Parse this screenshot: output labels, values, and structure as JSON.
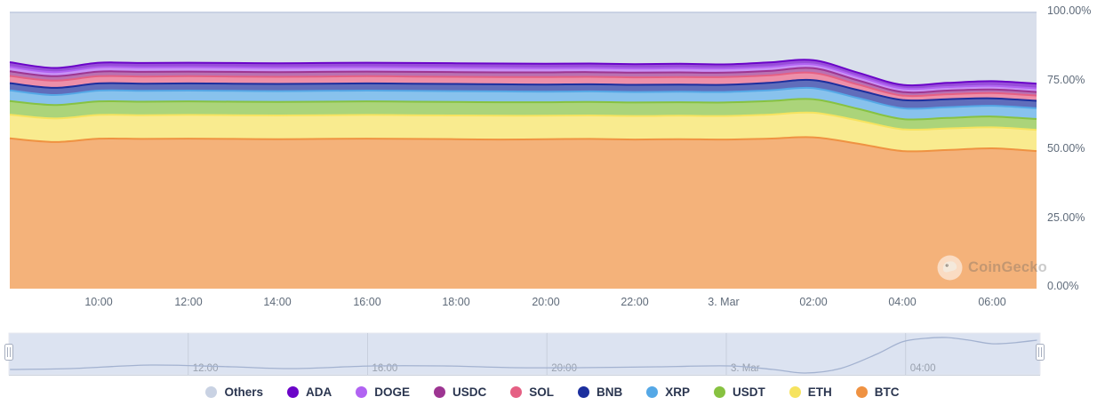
{
  "watermark": {
    "text": "CoinGecko"
  },
  "y_axis": {
    "labels": [
      "100.00%",
      "75.00%",
      "50.00%",
      "25.00%",
      "0.00%"
    ]
  },
  "x_axis": {
    "ticks": [
      {
        "label": "10:00",
        "hour": 2
      },
      {
        "label": "12:00",
        "hour": 4
      },
      {
        "label": "14:00",
        "hour": 6
      },
      {
        "label": "16:00",
        "hour": 8
      },
      {
        "label": "18:00",
        "hour": 10
      },
      {
        "label": "20:00",
        "hour": 12
      },
      {
        "label": "22:00",
        "hour": 14
      },
      {
        "label": "3. Mar",
        "hour": 16
      },
      {
        "label": "02:00",
        "hour": 18
      },
      {
        "label": "04:00",
        "hour": 20
      },
      {
        "label": "06:00",
        "hour": 22
      }
    ]
  },
  "navigator": {
    "ticks": [
      {
        "label": "12:00",
        "hour": 4
      },
      {
        "label": "16:00",
        "hour": 8
      },
      {
        "label": "20:00",
        "hour": 12
      },
      {
        "label": "3. Mar",
        "hour": 16
      },
      {
        "label": "04:00",
        "hour": 20
      }
    ],
    "curve": [
      [
        0.001,
        0.875
      ],
      [
        0.06,
        0.854
      ],
      [
        0.138,
        0.771
      ],
      [
        0.216,
        0.813
      ],
      [
        0.276,
        0.854
      ],
      [
        0.353,
        0.792
      ],
      [
        0.422,
        0.792
      ],
      [
        0.491,
        0.833
      ],
      [
        0.552,
        0.833
      ],
      [
        0.629,
        0.813
      ],
      [
        0.698,
        0.792
      ],
      [
        0.741,
        0.875
      ],
      [
        0.772,
        0.958
      ],
      [
        0.806,
        0.854
      ],
      [
        0.841,
        0.521
      ],
      [
        0.866,
        0.229
      ],
      [
        0.888,
        0.146
      ],
      [
        0.909,
        0.125
      ],
      [
        0.931,
        0.188
      ],
      [
        0.953,
        0.271
      ],
      [
        0.974,
        0.25
      ],
      [
        0.997,
        0.188
      ]
    ]
  },
  "legend": {
    "items": [
      {
        "label": "Others",
        "color": "#c9d2e3"
      },
      {
        "label": "ADA",
        "color": "#6b04c8"
      },
      {
        "label": "DOGE",
        "color": "#b163f2"
      },
      {
        "label": "USDC",
        "color": "#9d3592"
      },
      {
        "label": "SOL",
        "color": "#e56084"
      },
      {
        "label": "BNB",
        "color": "#1c2f9e"
      },
      {
        "label": "XRP",
        "color": "#55a8e6"
      },
      {
        "label": "USDT",
        "color": "#87c241"
      },
      {
        "label": "ETH",
        "color": "#f6e35f"
      },
      {
        "label": "BTC",
        "color": "#ef9242"
      }
    ]
  },
  "chart_data": {
    "type": "area",
    "stacking": "percent",
    "title": "",
    "ylabel": "",
    "ylim": [
      0,
      100
    ],
    "grid": false,
    "legend_position": "bottom",
    "x": [
      "08:00",
      "09:00",
      "10:00",
      "11:00",
      "12:00",
      "13:00",
      "14:00",
      "15:00",
      "16:00",
      "17:00",
      "18:00",
      "19:00",
      "20:00",
      "21:00",
      "22:00",
      "23:00",
      "3. Mar 00:00",
      "01:00",
      "02:00",
      "03:00",
      "04:00",
      "05:00",
      "06:00",
      "07:00"
    ],
    "series_stack_order": "bottom_to_top",
    "series": [
      {
        "name": "BTC",
        "color": "#ef9242",
        "values": [
          54.4,
          53.1,
          54.3,
          54.2,
          54.3,
          54.2,
          54.1,
          54.2,
          54.3,
          54.2,
          54.1,
          54.0,
          54.1,
          54.2,
          54.0,
          54.1,
          54.0,
          54.3,
          54.8,
          52.5,
          49.8,
          50.2,
          50.8,
          49.8
        ]
      },
      {
        "name": "ETH",
        "color": "#f6e35f",
        "values": [
          8.6,
          8.5,
          8.6,
          8.6,
          8.6,
          8.6,
          8.6,
          8.6,
          8.6,
          8.6,
          8.6,
          8.6,
          8.5,
          8.5,
          8.5,
          8.5,
          8.5,
          8.7,
          8.9,
          8.4,
          7.9,
          7.8,
          7.6,
          7.7
        ]
      },
      {
        "name": "USDT",
        "color": "#87c241",
        "values": [
          4.9,
          4.9,
          4.9,
          4.9,
          4.9,
          4.9,
          4.9,
          4.9,
          4.9,
          4.9,
          4.9,
          4.9,
          4.9,
          4.9,
          4.9,
          4.9,
          4.9,
          4.9,
          4.9,
          4.2,
          3.7,
          3.8,
          3.9,
          3.9
        ]
      },
      {
        "name": "XRP",
        "color": "#55a8e6",
        "values": [
          3.9,
          3.6,
          3.9,
          3.9,
          3.9,
          3.9,
          3.9,
          3.9,
          3.9,
          3.9,
          3.9,
          3.9,
          3.8,
          3.8,
          3.8,
          3.8,
          3.8,
          3.9,
          4.0,
          3.9,
          3.9,
          3.9,
          3.9,
          3.9
        ]
      },
      {
        "name": "BNB",
        "color": "#1c2f9e",
        "values": [
          2.6,
          2.6,
          2.6,
          2.6,
          2.6,
          2.6,
          2.6,
          2.6,
          2.6,
          2.6,
          2.6,
          2.6,
          2.6,
          2.6,
          2.6,
          2.6,
          2.6,
          2.7,
          2.9,
          2.9,
          3.0,
          2.9,
          2.7,
          2.7
        ]
      },
      {
        "name": "SOL",
        "color": "#e56084",
        "values": [
          2.6,
          2.6,
          2.6,
          2.6,
          2.6,
          2.6,
          2.6,
          2.6,
          2.6,
          2.6,
          2.6,
          2.6,
          2.7,
          2.7,
          2.7,
          2.7,
          2.8,
          2.7,
          2.6,
          2.0,
          1.6,
          1.8,
          1.9,
          1.9
        ]
      },
      {
        "name": "USDC",
        "color": "#9d3592",
        "values": [
          1.7,
          1.6,
          1.7,
          1.7,
          1.7,
          1.7,
          1.7,
          1.7,
          1.7,
          1.7,
          1.7,
          1.7,
          1.7,
          1.7,
          1.7,
          1.7,
          1.6,
          1.6,
          1.7,
          1.5,
          1.3,
          1.3,
          1.3,
          1.3
        ]
      },
      {
        "name": "DOGE",
        "color": "#b163f2",
        "values": [
          1.6,
          1.5,
          1.6,
          1.6,
          1.6,
          1.6,
          1.6,
          1.6,
          1.6,
          1.6,
          1.6,
          1.6,
          1.5,
          1.5,
          1.5,
          1.5,
          1.5,
          1.5,
          1.4,
          1.4,
          1.3,
          1.3,
          1.3,
          1.3
        ]
      },
      {
        "name": "ADA",
        "color": "#6b04c8",
        "values": [
          1.7,
          1.5,
          1.6,
          1.6,
          1.6,
          1.6,
          1.6,
          1.6,
          1.6,
          1.6,
          1.6,
          1.6,
          1.6,
          1.6,
          1.6,
          1.6,
          1.5,
          1.6,
          1.5,
          1.4,
          1.3,
          1.5,
          1.7,
          1.7
        ]
      },
      {
        "name": "Others",
        "color": "#c9d2e3",
        "values": [
          18.0,
          20.1,
          18.2,
          18.3,
          18.2,
          18.3,
          18.4,
          18.3,
          18.2,
          18.3,
          18.4,
          18.5,
          18.6,
          18.5,
          18.7,
          18.6,
          18.8,
          18.1,
          17.3,
          21.8,
          26.2,
          25.5,
          24.9,
          25.8
        ]
      }
    ]
  }
}
